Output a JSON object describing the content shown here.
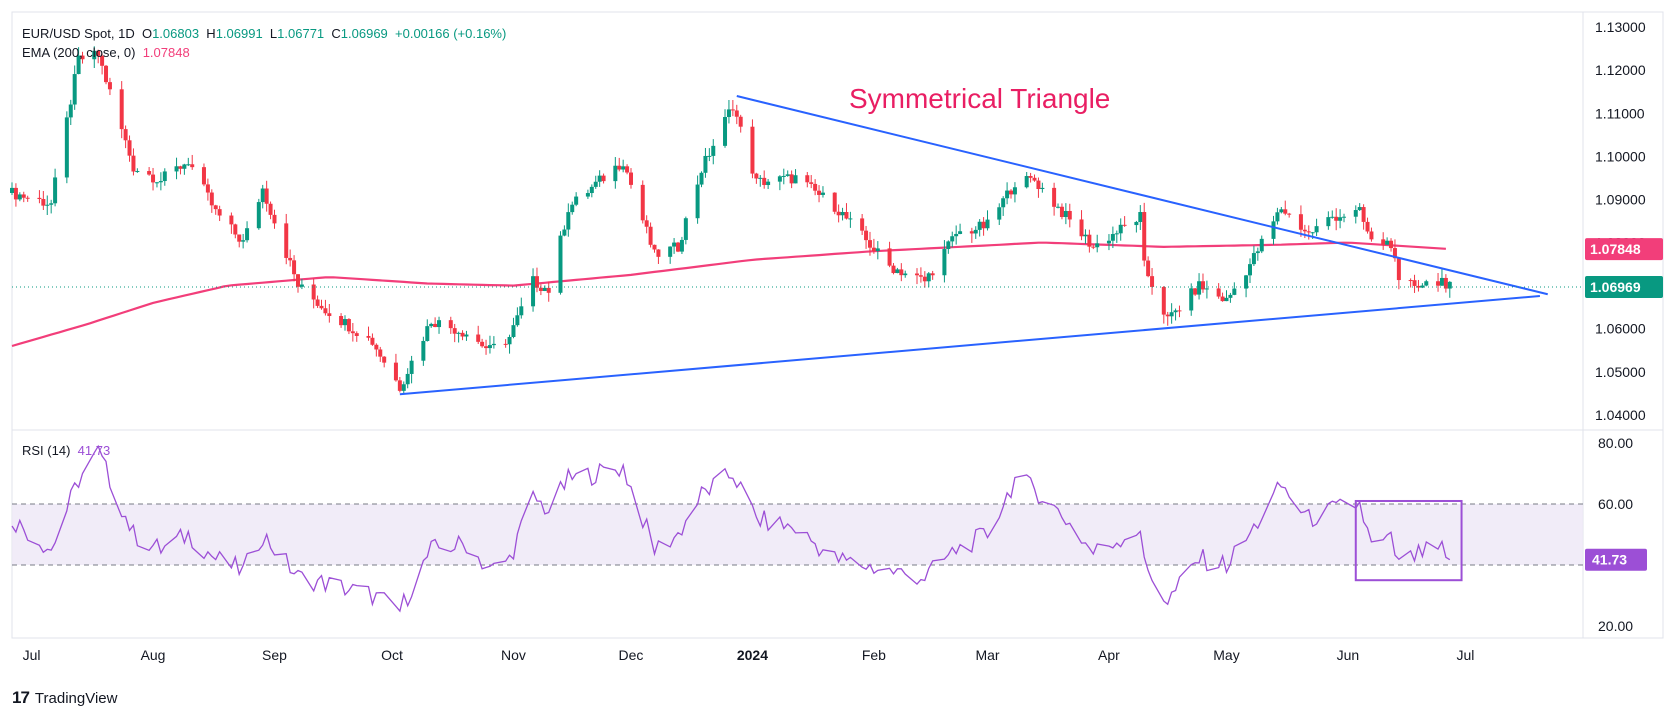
{
  "header": {
    "symbol": "EUR/USD Spot, 1D",
    "o_label": "O",
    "o_value": "1.06803",
    "h_label": "H",
    "h_value": "1.06991",
    "l_label": "L",
    "l_value": "1.06771",
    "c_label": "C",
    "c_value": "1.06969",
    "change": "+0.00166 (+0.16%)",
    "ema_label": "EMA (200, close, 0)",
    "ema_value": "1.07848",
    "rsi_label": "RSI (14)",
    "rsi_value": "41.73"
  },
  "footer": {
    "brand": "TradingView"
  },
  "colors": {
    "up": "#089981",
    "down": "#f23645",
    "ema": "#f23e7a",
    "trendline": "#2962ff",
    "rsi": "#9c4fd6",
    "annotation": "#e91e63",
    "last_price": "#089981",
    "rsi_band": "#ede7f6"
  },
  "chart_data": [
    {
      "type": "candlestick",
      "title": "EUR/USD Spot, 1D",
      "annotation": "Symmetrical Triangle",
      "x_ticks": [
        "Jul",
        "Aug",
        "Sep",
        "Oct",
        "Nov",
        "Dec",
        "2024",
        "Feb",
        "Mar",
        "Apr",
        "May",
        "Jun",
        "Jul"
      ],
      "x_range": [
        "2023-06-26",
        "2024-07-31"
      ],
      "y_ticks": [
        "1.04000",
        "1.05000",
        "1.06000",
        "1.07000",
        "1.08000",
        "1.09000",
        "1.10000",
        "1.11000",
        "1.12000",
        "1.13000"
      ],
      "y_range": [
        1.0365,
        1.1335
      ],
      "last_price": "1.06969",
      "ema_last": "1.07848",
      "close_anchors": [
        [
          "2023-06-26",
          1.0915
        ],
        [
          "2023-07-06",
          1.089
        ],
        [
          "2023-07-13",
          1.1225
        ],
        [
          "2023-07-18",
          1.1235
        ],
        [
          "2023-07-27",
          1.0975
        ],
        [
          "2023-08-03",
          1.0945
        ],
        [
          "2023-08-10",
          1.099
        ],
        [
          "2023-08-17",
          1.087
        ],
        [
          "2023-08-24",
          1.08
        ],
        [
          "2023-08-29",
          1.0925
        ],
        [
          "2023-09-07",
          1.07
        ],
        [
          "2023-09-14",
          1.0645
        ],
        [
          "2023-09-26",
          1.057
        ],
        [
          "2023-10-03",
          1.0465
        ],
        [
          "2023-10-11",
          1.062
        ],
        [
          "2023-10-20",
          1.059
        ],
        [
          "2023-10-26",
          1.055
        ],
        [
          "2023-10-31",
          1.058
        ],
        [
          "2023-11-06",
          1.071
        ],
        [
          "2023-11-10",
          1.069
        ],
        [
          "2023-11-15",
          1.088
        ],
        [
          "2023-11-29",
          1.099
        ],
        [
          "2023-12-07",
          1.077
        ],
        [
          "2023-12-13",
          1.079
        ],
        [
          "2023-12-19",
          1.097
        ],
        [
          "2023-12-27",
          1.112
        ],
        [
          "2024-01-02",
          1.094
        ],
        [
          "2024-01-12",
          1.095
        ],
        [
          "2024-01-22",
          1.0885
        ],
        [
          "2024-02-05",
          1.0745
        ],
        [
          "2024-02-14",
          1.071
        ],
        [
          "2024-02-22",
          1.082
        ],
        [
          "2024-03-01",
          1.084
        ],
        [
          "2024-03-08",
          1.094
        ],
        [
          "2024-03-13",
          1.0945
        ],
        [
          "2024-03-21",
          1.086
        ],
        [
          "2024-03-28",
          1.079
        ],
        [
          "2024-04-09",
          1.086
        ],
        [
          "2024-04-10",
          1.0745
        ],
        [
          "2024-04-16",
          1.062
        ],
        [
          "2024-04-24",
          1.07
        ],
        [
          "2024-05-01",
          1.0665
        ],
        [
          "2024-05-07",
          1.075
        ],
        [
          "2024-05-15",
          1.088
        ],
        [
          "2024-05-22",
          1.082
        ],
        [
          "2024-05-28",
          1.086
        ],
        [
          "2024-06-04",
          1.087
        ],
        [
          "2024-06-07",
          1.08
        ],
        [
          "2024-06-12",
          1.08
        ],
        [
          "2024-06-14",
          1.07
        ],
        [
          "2024-06-20",
          1.0705
        ],
        [
          "2024-06-25",
          1.0715
        ],
        [
          "2024-06-26",
          1.068
        ],
        [
          "2024-06-27",
          1.0697
        ]
      ],
      "ema_anchors": [
        [
          "2023-06-26",
          1.056
        ],
        [
          "2023-07-15",
          1.061
        ],
        [
          "2023-08-01",
          1.066
        ],
        [
          "2023-08-20",
          1.07
        ],
        [
          "2023-09-15",
          1.072
        ],
        [
          "2023-10-10",
          1.0705
        ],
        [
          "2023-11-01",
          1.07
        ],
        [
          "2023-12-01",
          1.0725
        ],
        [
          "2024-01-01",
          1.076
        ],
        [
          "2024-02-01",
          1.078
        ],
        [
          "2024-03-15",
          1.08
        ],
        [
          "2024-04-15",
          1.079
        ],
        [
          "2024-05-15",
          1.0795
        ],
        [
          "2024-06-01",
          1.08
        ],
        [
          "2024-06-27",
          1.0785
        ]
      ],
      "trendlines": [
        {
          "from": [
            "2023-12-28",
            1.114
          ],
          "to": [
            "2024-07-22",
            1.068
          ]
        },
        {
          "from": [
            "2023-10-03",
            1.0448
          ],
          "to": [
            "2024-07-20",
            1.0676
          ]
        }
      ]
    },
    {
      "type": "line",
      "title": "RSI (14)",
      "y_ticks": [
        "20.00",
        "60.00",
        "80.00"
      ],
      "y_range": [
        18,
        82
      ],
      "bands": [
        40,
        60
      ],
      "last_value": "41.73",
      "highlight_box": {
        "x": [
          "2024-06-03",
          "2024-06-30"
        ],
        "y": [
          35,
          61
        ]
      },
      "anchors": [
        [
          "2023-06-26",
          55
        ],
        [
          "2023-07-06",
          45
        ],
        [
          "2023-07-13",
          68
        ],
        [
          "2023-07-18",
          77
        ],
        [
          "2023-07-27",
          50
        ],
        [
          "2023-08-03",
          45
        ],
        [
          "2023-08-10",
          50
        ],
        [
          "2023-08-17",
          42
        ],
        [
          "2023-08-24",
          38
        ],
        [
          "2023-08-29",
          50
        ],
        [
          "2023-09-07",
          36
        ],
        [
          "2023-09-14",
          34
        ],
        [
          "2023-09-26",
          30
        ],
        [
          "2023-10-03",
          25
        ],
        [
          "2023-10-11",
          45
        ],
        [
          "2023-10-20",
          47
        ],
        [
          "2023-10-26",
          38
        ],
        [
          "2023-10-31",
          42
        ],
        [
          "2023-11-06",
          62
        ],
        [
          "2023-11-10",
          58
        ],
        [
          "2023-11-15",
          68
        ],
        [
          "2023-11-29",
          72
        ],
        [
          "2023-12-07",
          45
        ],
        [
          "2023-12-13",
          50
        ],
        [
          "2023-12-19",
          63
        ],
        [
          "2023-12-27",
          70
        ],
        [
          "2024-01-02",
          55
        ],
        [
          "2024-01-12",
          52
        ],
        [
          "2024-01-22",
          42
        ],
        [
          "2024-02-05",
          38
        ],
        [
          "2024-02-14",
          36
        ],
        [
          "2024-02-22",
          45
        ],
        [
          "2024-03-01",
          50
        ],
        [
          "2024-03-08",
          68
        ],
        [
          "2024-03-13",
          65
        ],
        [
          "2024-03-21",
          55
        ],
        [
          "2024-03-28",
          44
        ],
        [
          "2024-04-09",
          52
        ],
        [
          "2024-04-10",
          40
        ],
        [
          "2024-04-16",
          28
        ],
        [
          "2024-04-24",
          42
        ],
        [
          "2024-05-01",
          40
        ],
        [
          "2024-05-07",
          50
        ],
        [
          "2024-05-15",
          66
        ],
        [
          "2024-05-22",
          55
        ],
        [
          "2024-05-28",
          58
        ],
        [
          "2024-06-04",
          60
        ],
        [
          "2024-06-07",
          46
        ],
        [
          "2024-06-12",
          48
        ],
        [
          "2024-06-14",
          40
        ],
        [
          "2024-06-20",
          44
        ],
        [
          "2024-06-25",
          45
        ],
        [
          "2024-06-26",
          40
        ],
        [
          "2024-06-27",
          41.73
        ]
      ]
    }
  ]
}
